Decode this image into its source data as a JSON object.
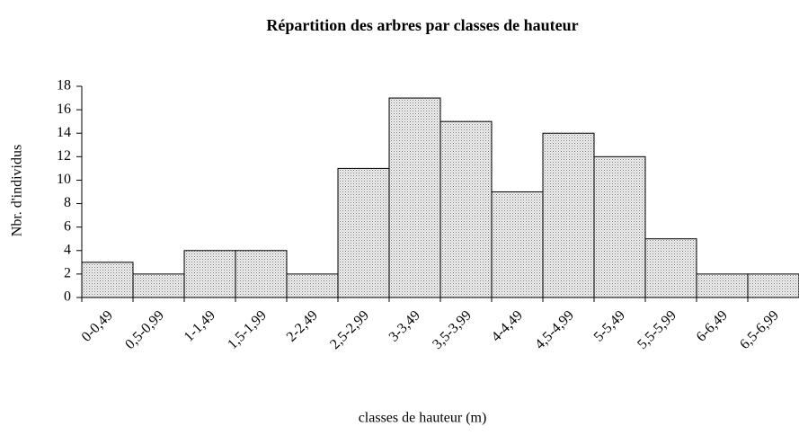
{
  "chart_data": {
    "type": "bar",
    "title": "Répartition des arbres par classes de hauteur",
    "xlabel": "classes de hauteur (m)",
    "ylabel": "Nbr. d'individus",
    "categories": [
      "0-0,49",
      "0,5-0,99",
      "1-1,49",
      "1,5-1,99",
      "2-2,49",
      "2,5-2,99",
      "3-3,49",
      "3,5-3,99",
      "4-4,49",
      "4,5-4,99",
      "5-5,49",
      "5,5-5,99",
      "6-6,49",
      "6,5-6,99"
    ],
    "values": [
      3,
      2,
      4,
      4,
      2,
      11,
      17,
      15,
      9,
      14,
      12,
      5,
      2,
      2
    ],
    "color": "#d9d9d9",
    "ylim": [
      0,
      18
    ],
    "yticks": [
      0,
      2,
      4,
      6,
      8,
      10,
      12,
      14,
      16,
      18
    ],
    "grid": false
  }
}
